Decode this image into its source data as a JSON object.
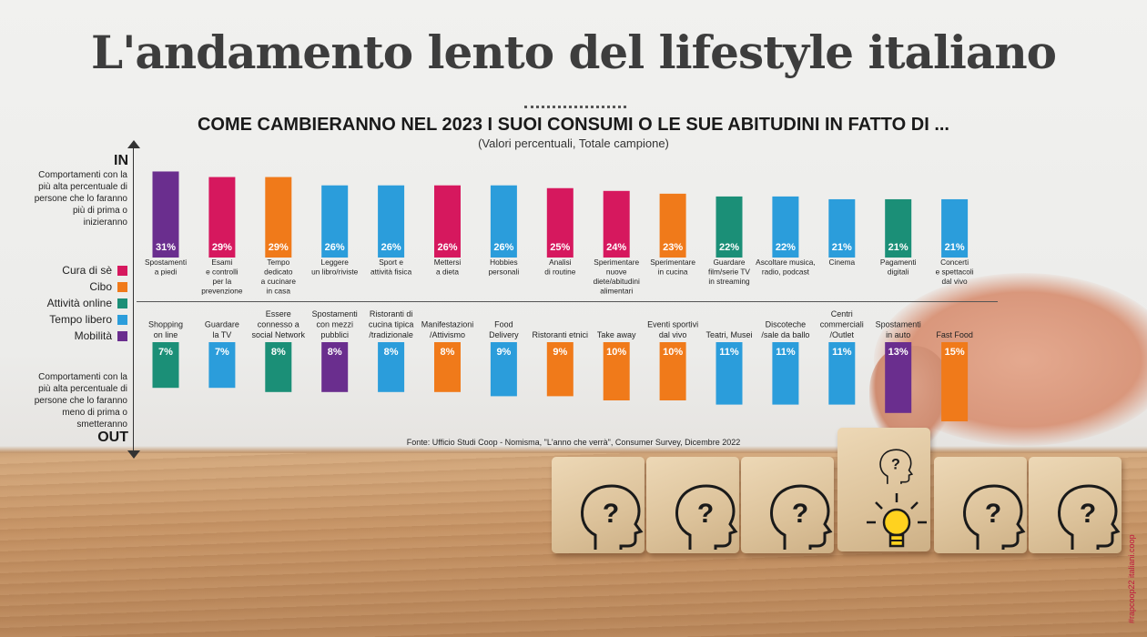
{
  "title": "L'andamento lento del lifestyle italiano",
  "subtitle": "COME CAMBIERANNO NEL 2023 I SUOI CONSUMI O LE SUE ABITUDINI IN FATTO DI ...",
  "note": "(Valori percentuali, Totale campione)",
  "in_label": "IN",
  "out_label": "OUT",
  "in_description": "Comportamenti con la più alta percentuale di persone che lo faranno più di prima o inizieranno",
  "out_description": "Comportamenti con la più alta percentuale di persone che lo faranno meno di prima o smetteranno",
  "source": "Fonte: Ufficio Studi Coop - Nomisma, \"L'anno che verrà\", Consumer Survey, Dicembre 2022",
  "side_tag": "#rapcoop22 italiani.coop",
  "legend": [
    {
      "name": "Cura di sè",
      "color": "#d6185e"
    },
    {
      "name": "Cibo",
      "color": "#f07a1a"
    },
    {
      "name": "Attività online",
      "color": "#1b8f77"
    },
    {
      "name": "Tempo libero",
      "color": "#2b9ddb"
    },
    {
      "name": "Mobilità",
      "color": "#6a2e8e"
    }
  ],
  "icons": {
    "cube_face": "head-question-icon",
    "cube_lit": "lightbulb-icon"
  },
  "chart_data": [
    {
      "type": "bar",
      "panel": "IN",
      "categories": [
        "Spostamenti a piedi",
        "Esami e controlli per la prevenzione",
        "Tempo dedicato a cucinare in casa",
        "Leggere un libro/riviste",
        "Sport e attività fisica",
        "Mettersi a dieta",
        "Hobbies personali",
        "Analisi di routine",
        "Sperimentare nuove diete/abitudini alimentari",
        "Sperimentare in cucina",
        "Guardare film/serie TV in streaming",
        "Ascoltare musica, radio, podcast",
        "Cinema",
        "Pagamenti digitali",
        "Concerti e spettacoli dal vivo"
      ],
      "label_lines": [
        [
          "Spostamenti",
          "a piedi"
        ],
        [
          "Esami",
          "e controlli",
          "per la",
          "prevenzione"
        ],
        [
          "Tempo",
          "dedicato",
          "a cucinare",
          "in casa"
        ],
        [
          "Leggere",
          "un libro/riviste"
        ],
        [
          "Sport e",
          "attività fisica"
        ],
        [
          "Mettersi",
          "a dieta"
        ],
        [
          "Hobbies",
          "personali"
        ],
        [
          "Analisi",
          "di routine"
        ],
        [
          "Sperimentare",
          "nuove",
          "diete/abitudini",
          "alimentari"
        ],
        [
          "Sperimentare",
          "in cucina"
        ],
        [
          "Guardare",
          "film/serie TV",
          "in streaming"
        ],
        [
          "Ascoltare musica,",
          "radio, podcast"
        ],
        [
          "Cinema"
        ],
        [
          "Pagamenti",
          "digitali"
        ],
        [
          "Concerti",
          "e spettacoli",
          "dal vivo"
        ]
      ],
      "values": [
        31,
        29,
        29,
        26,
        26,
        26,
        26,
        25,
        24,
        23,
        22,
        22,
        21,
        21,
        21
      ],
      "value_labels": [
        "31%",
        "29%",
        "29%",
        "26%",
        "26%",
        "26%",
        "26%",
        "25%",
        "24%",
        "23%",
        "22%",
        "22%",
        "21%",
        "21%",
        "21%"
      ],
      "groups": [
        "Mobilità",
        "Cura di sè",
        "Cibo",
        "Tempo libero",
        "Tempo libero",
        "Cura di sè",
        "Tempo libero",
        "Cura di sè",
        "Cura di sè",
        "Cibo",
        "Attività online",
        "Tempo libero",
        "Tempo libero",
        "Attività online",
        "Tempo libero"
      ]
    },
    {
      "type": "bar",
      "panel": "OUT",
      "categories": [
        "Shopping on line",
        "Guardare la TV",
        "Essere connesso a social Network",
        "Spostamenti con mezzi pubblici",
        "Ristoranti di cucina tipica /tradizionale",
        "Manifestazioni /Attivismo",
        "Food Delivery",
        "Ristoranti etnici",
        "Take away",
        "Eventi sportivi dal vivo",
        "Teatri, Musei",
        "Discoteche /sale da ballo",
        "Centri commerciali /Outlet",
        "Spostamenti in auto",
        "Fast Food"
      ],
      "label_lines": [
        [
          "Shopping",
          "on line"
        ],
        [
          "Guardare",
          "la TV"
        ],
        [
          "Essere",
          "connesso a",
          "social Network"
        ],
        [
          "Spostamenti",
          "con mezzi",
          "pubblici"
        ],
        [
          "Ristoranti di",
          "cucina tipica",
          "/tradizionale"
        ],
        [
          "Manifestazioni",
          "/Attivismo"
        ],
        [
          "Food",
          "Delivery"
        ],
        [
          "Ristoranti etnici"
        ],
        [
          "Take away"
        ],
        [
          "Eventi sportivi",
          "dal vivo"
        ],
        [
          "Teatri, Musei"
        ],
        [
          "Discoteche",
          "/sale da ballo"
        ],
        [
          "Centri",
          "commerciali",
          "/Outlet"
        ],
        [
          "Spostamenti",
          "in auto"
        ],
        [
          "Fast Food"
        ]
      ],
      "values": [
        7,
        7,
        8,
        8,
        8,
        8,
        9,
        9,
        10,
        10,
        11,
        11,
        11,
        13,
        15
      ],
      "value_labels": [
        "7%",
        "7%",
        "8%",
        "8%",
        "8%",
        "8%",
        "9%",
        "9%",
        "10%",
        "10%",
        "11%",
        "11%",
        "11%",
        "13%",
        "15%"
      ],
      "groups": [
        "Attività online",
        "Tempo libero",
        "Attività online",
        "Mobilità",
        "Tempo libero",
        "Cibo",
        "Tempo libero",
        "Cibo",
        "Cibo",
        "Cibo",
        "Tempo libero",
        "Tempo libero",
        "Tempo libero",
        "Mobilità",
        "Cibo"
      ]
    }
  ]
}
